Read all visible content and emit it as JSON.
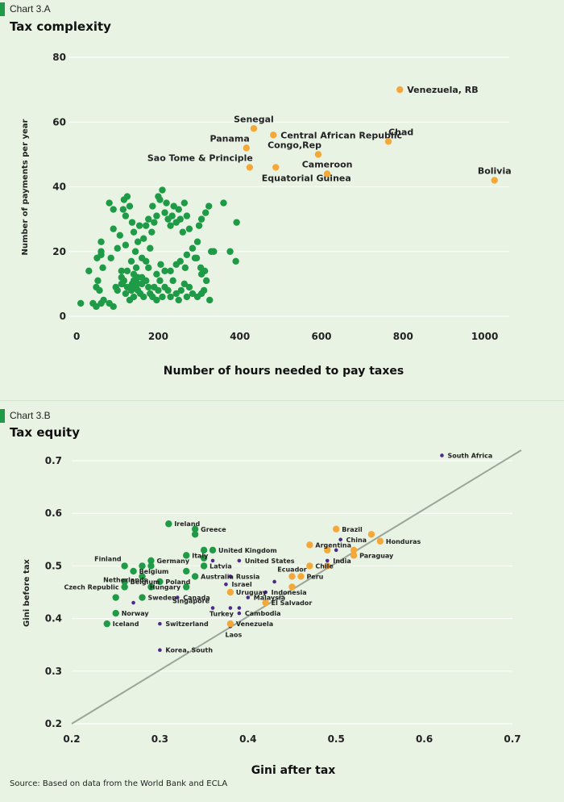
{
  "chart_data": [
    {
      "type": "scatter",
      "label": "Chart 3.A",
      "title": "Tax complexity",
      "xlabel": "Number of hours needed to pay taxes",
      "ylabel": "Number of payments per year",
      "xlim": [
        -20,
        1060
      ],
      "ylim": [
        0,
        80
      ],
      "xticks": [
        0,
        200,
        400,
        600,
        800,
        1000
      ],
      "yticks": [
        0,
        20,
        40,
        60,
        80
      ],
      "grid": true,
      "colors": {
        "highlight": "#f4a83a",
        "other": "#1f9a46",
        "grid": "#ffffff"
      },
      "highlighted": [
        {
          "name": "Venezuela, RB",
          "x": 792,
          "y": 70,
          "label_pos": "right"
        },
        {
          "name": "Senegal",
          "x": 434,
          "y": 58,
          "label_pos": "above"
        },
        {
          "name": "Central African Republic",
          "x": 482,
          "y": 56,
          "label_pos": "right"
        },
        {
          "name": "Panama",
          "x": 416,
          "y": 52,
          "label_pos": "above-left"
        },
        {
          "name": "Chad",
          "x": 764,
          "y": 54,
          "label_pos": "above-right"
        },
        {
          "name": "Congo,Rep",
          "x": 592,
          "y": 50,
          "label_pos": "above-left"
        },
        {
          "name": "Sao Tome & Principle",
          "x": 424,
          "y": 46,
          "label_pos": "above-left"
        },
        {
          "name": "Equatorial Guinea",
          "x": 488,
          "y": 46,
          "label_pos": "below"
        },
        {
          "name": "Cameroon",
          "x": 614,
          "y": 44,
          "label_pos": "above"
        },
        {
          "name": "Bolivia",
          "x": 1024,
          "y": 42,
          "label_pos": "above"
        }
      ],
      "others": [
        [
          10,
          4
        ],
        [
          40,
          4
        ],
        [
          48,
          3
        ],
        [
          60,
          4
        ],
        [
          66,
          5
        ],
        [
          80,
          4
        ],
        [
          90,
          3
        ],
        [
          30,
          14
        ],
        [
          50,
          18
        ],
        [
          60,
          19
        ],
        [
          60,
          20
        ],
        [
          64,
          15
        ],
        [
          60,
          23
        ],
        [
          48,
          9
        ],
        [
          52,
          11
        ],
        [
          56,
          8
        ],
        [
          80,
          35
        ],
        [
          90,
          33
        ],
        [
          84,
          18
        ],
        [
          100,
          8
        ],
        [
          110,
          12
        ],
        [
          110,
          10
        ],
        [
          116,
          11
        ],
        [
          120,
          7
        ],
        [
          124,
          9
        ],
        [
          130,
          5
        ],
        [
          134,
          8
        ],
        [
          136,
          10
        ],
        [
          140,
          6
        ],
        [
          140,
          9
        ],
        [
          144,
          11
        ],
        [
          150,
          12
        ],
        [
          150,
          8
        ],
        [
          156,
          7
        ],
        [
          160,
          10
        ],
        [
          164,
          6
        ],
        [
          170,
          11
        ],
        [
          176,
          9
        ],
        [
          180,
          7
        ],
        [
          186,
          6
        ],
        [
          190,
          9
        ],
        [
          196,
          5
        ],
        [
          200,
          8
        ],
        [
          204,
          11
        ],
        [
          210,
          6
        ],
        [
          216,
          9
        ],
        [
          224,
          8
        ],
        [
          230,
          6
        ],
        [
          236,
          11
        ],
        [
          244,
          7
        ],
        [
          250,
          5
        ],
        [
          256,
          8
        ],
        [
          264,
          10
        ],
        [
          270,
          6
        ],
        [
          276,
          9
        ],
        [
          284,
          7
        ],
        [
          296,
          6
        ],
        [
          306,
          7
        ],
        [
          312,
          8
        ],
        [
          326,
          5
        ],
        [
          318,
          11
        ],
        [
          306,
          13
        ],
        [
          90,
          27
        ],
        [
          100,
          21
        ],
        [
          106,
          25
        ],
        [
          114,
          33
        ],
        [
          116,
          36
        ],
        [
          120,
          31
        ],
        [
          124,
          37
        ],
        [
          130,
          34
        ],
        [
          136,
          29
        ],
        [
          140,
          26
        ],
        [
          144,
          20
        ],
        [
          150,
          23
        ],
        [
          154,
          28
        ],
        [
          160,
          18
        ],
        [
          164,
          24
        ],
        [
          170,
          28
        ],
        [
          176,
          30
        ],
        [
          180,
          21
        ],
        [
          184,
          26
        ],
        [
          186,
          34
        ],
        [
          190,
          29
        ],
        [
          196,
          31
        ],
        [
          200,
          37
        ],
        [
          204,
          36
        ],
        [
          210,
          39
        ],
        [
          216,
          32
        ],
        [
          220,
          35
        ],
        [
          224,
          30
        ],
        [
          230,
          28
        ],
        [
          234,
          31
        ],
        [
          238,
          34
        ],
        [
          244,
          29
        ],
        [
          250,
          33
        ],
        [
          254,
          30
        ],
        [
          260,
          26
        ],
        [
          264,
          35
        ],
        [
          270,
          31
        ],
        [
          276,
          27
        ],
        [
          284,
          21
        ],
        [
          290,
          18
        ],
        [
          296,
          23
        ],
        [
          300,
          28
        ],
        [
          306,
          30
        ],
        [
          316,
          32
        ],
        [
          324,
          34
        ],
        [
          330,
          20
        ],
        [
          336,
          20
        ],
        [
          360,
          35
        ],
        [
          376,
          20
        ],
        [
          390,
          17
        ],
        [
          392,
          29
        ],
        [
          110,
          14
        ],
        [
          124,
          14
        ],
        [
          140,
          13
        ],
        [
          146,
          15
        ],
        [
          160,
          12
        ],
        [
          170,
          17
        ],
        [
          176,
          15
        ],
        [
          196,
          13
        ],
        [
          206,
          16
        ],
        [
          216,
          14
        ],
        [
          230,
          14
        ],
        [
          244,
          16
        ],
        [
          254,
          17
        ],
        [
          266,
          15
        ],
        [
          270,
          19
        ],
        [
          294,
          18
        ],
        [
          304,
          15
        ],
        [
          314,
          14
        ],
        [
          134,
          17
        ],
        [
          120,
          22
        ],
        [
          140,
          11
        ],
        [
          112,
          10
        ],
        [
          150,
          10
        ],
        [
          96,
          9
        ]
      ]
    },
    {
      "type": "scatter",
      "label": "Chart 3.B",
      "title": "Tax equity",
      "xlabel": "Gini after tax",
      "ylabel": "Gini before tax",
      "xlim": [
        0.2,
        0.7
      ],
      "ylim": [
        0.2,
        0.7
      ],
      "xticks": [
        "0.2",
        "0.3",
        "0.4",
        "0.5",
        "0.6",
        "0.7"
      ],
      "yticks": [
        "0.2",
        "0.3",
        "0.4",
        "0.5",
        "0.6",
        "0.7"
      ],
      "grid": true,
      "reference_line": {
        "from": [
          0.2,
          0.2
        ],
        "to": [
          0.71,
          0.72
        ],
        "color": "#9aa59a"
      },
      "colors": {
        "big": "#1f9a46",
        "orange": "#f4a83a",
        "small": "#4b2a8c"
      },
      "points": [
        {
          "name": "South Africa",
          "x": 0.62,
          "y": 0.71,
          "kind": "small",
          "label_pos": "right"
        },
        {
          "name": "Ireland",
          "x": 0.31,
          "y": 0.58,
          "kind": "big",
          "label_pos": "right"
        },
        {
          "name": "Greece",
          "x": 0.34,
          "y": 0.57,
          "kind": "big",
          "label_pos": "right"
        },
        {
          "name": "",
          "x": 0.34,
          "y": 0.56,
          "kind": "big"
        },
        {
          "name": "United Kingdom",
          "x": 0.36,
          "y": 0.53,
          "kind": "big",
          "label_pos": "right"
        },
        {
          "name": "",
          "x": 0.35,
          "y": 0.53,
          "kind": "big"
        },
        {
          "name": "Italy",
          "x": 0.33,
          "y": 0.52,
          "kind": "big",
          "label_pos": "right"
        },
        {
          "name": "",
          "x": 0.35,
          "y": 0.515,
          "kind": "big"
        },
        {
          "name": "Latvia",
          "x": 0.35,
          "y": 0.5,
          "kind": "big",
          "label_pos": "right"
        },
        {
          "name": "Finland",
          "x": 0.26,
          "y": 0.5,
          "kind": "big",
          "label_pos": "above-left"
        },
        {
          "name": "Germany",
          "x": 0.29,
          "y": 0.51,
          "kind": "big",
          "label_pos": "right"
        },
        {
          "name": "",
          "x": 0.28,
          "y": 0.5,
          "kind": "big"
        },
        {
          "name": "",
          "x": 0.29,
          "y": 0.5,
          "kind": "big"
        },
        {
          "name": "Belgium",
          "x": 0.27,
          "y": 0.49,
          "kind": "big",
          "label_pos": "right"
        },
        {
          "name": "",
          "x": 0.28,
          "y": 0.48,
          "kind": "big"
        },
        {
          "name": "Belgium",
          "x": 0.26,
          "y": 0.47,
          "kind": "big",
          "label_pos": "right"
        },
        {
          "name": "Poland",
          "x": 0.3,
          "y": 0.47,
          "kind": "big",
          "label_pos": "right"
        },
        {
          "name": "Australia",
          "x": 0.34,
          "y": 0.48,
          "kind": "big",
          "label_pos": "right"
        },
        {
          "name": "",
          "x": 0.33,
          "y": 0.49,
          "kind": "big"
        },
        {
          "name": "Czech Republic",
          "x": 0.26,
          "y": 0.46,
          "kind": "big",
          "label_pos": "left"
        },
        {
          "name": "Netherlands",
          "x": 0.29,
          "y": 0.46,
          "kind": "big",
          "label_pos": "above-left"
        },
        {
          "name": "Hungary",
          "x": 0.33,
          "y": 0.46,
          "kind": "big",
          "label_pos": "left"
        },
        {
          "name": "Sweden",
          "x": 0.28,
          "y": 0.44,
          "kind": "big",
          "label_pos": "right"
        },
        {
          "name": "Norway",
          "x": 0.25,
          "y": 0.41,
          "kind": "big",
          "label_pos": "right"
        },
        {
          "name": "Iceland",
          "x": 0.24,
          "y": 0.39,
          "kind": "big",
          "label_pos": "right"
        },
        {
          "name": "",
          "x": 0.25,
          "y": 0.44,
          "kind": "big"
        },
        {
          "name": "Canada",
          "x": 0.32,
          "y": 0.44,
          "kind": "small",
          "label_pos": "right"
        },
        {
          "name": "",
          "x": 0.27,
          "y": 0.43,
          "kind": "small"
        },
        {
          "name": "",
          "x": 0.36,
          "y": 0.51,
          "kind": "small"
        },
        {
          "name": "United States",
          "x": 0.39,
          "y": 0.51,
          "kind": "small",
          "label_pos": "right"
        },
        {
          "name": "Russia",
          "x": 0.38,
          "y": 0.48,
          "kind": "small",
          "label_pos": "right"
        },
        {
          "name": "Israel",
          "x": 0.375,
          "y": 0.465,
          "kind": "small",
          "label_pos": "right"
        },
        {
          "name": "Uruguay",
          "x": 0.38,
          "y": 0.45,
          "kind": "orange",
          "label_pos": "right"
        },
        {
          "name": "Indonesia",
          "x": 0.42,
          "y": 0.45,
          "kind": "small",
          "label_pos": "right"
        },
        {
          "name": "Malaysia",
          "x": 0.4,
          "y": 0.44,
          "kind": "small",
          "label_pos": "right"
        },
        {
          "name": "El Salvador",
          "x": 0.42,
          "y": 0.43,
          "kind": "orange",
          "label_pos": "right"
        },
        {
          "name": "Singapore",
          "x": 0.36,
          "y": 0.42,
          "kind": "small",
          "label_pos": "above-left"
        },
        {
          "name": "Turkey",
          "x": 0.38,
          "y": 0.42,
          "kind": "small",
          "label_pos": "below-left"
        },
        {
          "name": "Cambodia",
          "x": 0.39,
          "y": 0.41,
          "kind": "small",
          "label_pos": "right"
        },
        {
          "name": "",
          "x": 0.39,
          "y": 0.42,
          "kind": "small"
        },
        {
          "name": "",
          "x": 0.43,
          "y": 0.47,
          "kind": "small"
        },
        {
          "name": "Switzerland",
          "x": 0.3,
          "y": 0.39,
          "kind": "small",
          "label_pos": "right"
        },
        {
          "name": "Venezuela",
          "x": 0.38,
          "y": 0.39,
          "kind": "orange",
          "label_pos": "right"
        },
        {
          "name": "Laos",
          "x": 0.38,
          "y": 0.385,
          "kind": "small",
          "label_pos": "below"
        },
        {
          "name": "Korea, South",
          "x": 0.3,
          "y": 0.34,
          "kind": "small",
          "label_pos": "right"
        },
        {
          "name": "Brazil",
          "x": 0.5,
          "y": 0.57,
          "kind": "orange",
          "label_pos": "right"
        },
        {
          "name": "China",
          "x": 0.505,
          "y": 0.55,
          "kind": "small",
          "label_pos": "right"
        },
        {
          "name": "",
          "x": 0.54,
          "y": 0.56,
          "kind": "orange"
        },
        {
          "name": "Honduras",
          "x": 0.55,
          "y": 0.547,
          "kind": "orange",
          "label_pos": "right"
        },
        {
          "name": "Argentina",
          "x": 0.47,
          "y": 0.54,
          "kind": "orange",
          "label_pos": "right"
        },
        {
          "name": "",
          "x": 0.49,
          "y": 0.53,
          "kind": "orange"
        },
        {
          "name": "",
          "x": 0.5,
          "y": 0.53,
          "kind": "small"
        },
        {
          "name": "",
          "x": 0.52,
          "y": 0.53,
          "kind": "orange"
        },
        {
          "name": "Paraguay",
          "x": 0.52,
          "y": 0.52,
          "kind": "orange",
          "label_pos": "right"
        },
        {
          "name": "India",
          "x": 0.49,
          "y": 0.51,
          "kind": "small",
          "label_pos": "right"
        },
        {
          "name": "Chile",
          "x": 0.47,
          "y": 0.5,
          "kind": "orange",
          "label_pos": "right"
        },
        {
          "name": "",
          "x": 0.49,
          "y": 0.5,
          "kind": "orange"
        },
        {
          "name": "Ecuador",
          "x": 0.45,
          "y": 0.48,
          "kind": "orange",
          "label_pos": "above"
        },
        {
          "name": "Peru",
          "x": 0.46,
          "y": 0.48,
          "kind": "orange",
          "label_pos": "right"
        },
        {
          "name": "",
          "x": 0.45,
          "y": 0.46,
          "kind": "orange"
        }
      ]
    }
  ],
  "source": "Source: Based on data from the World Bank and ECLA"
}
